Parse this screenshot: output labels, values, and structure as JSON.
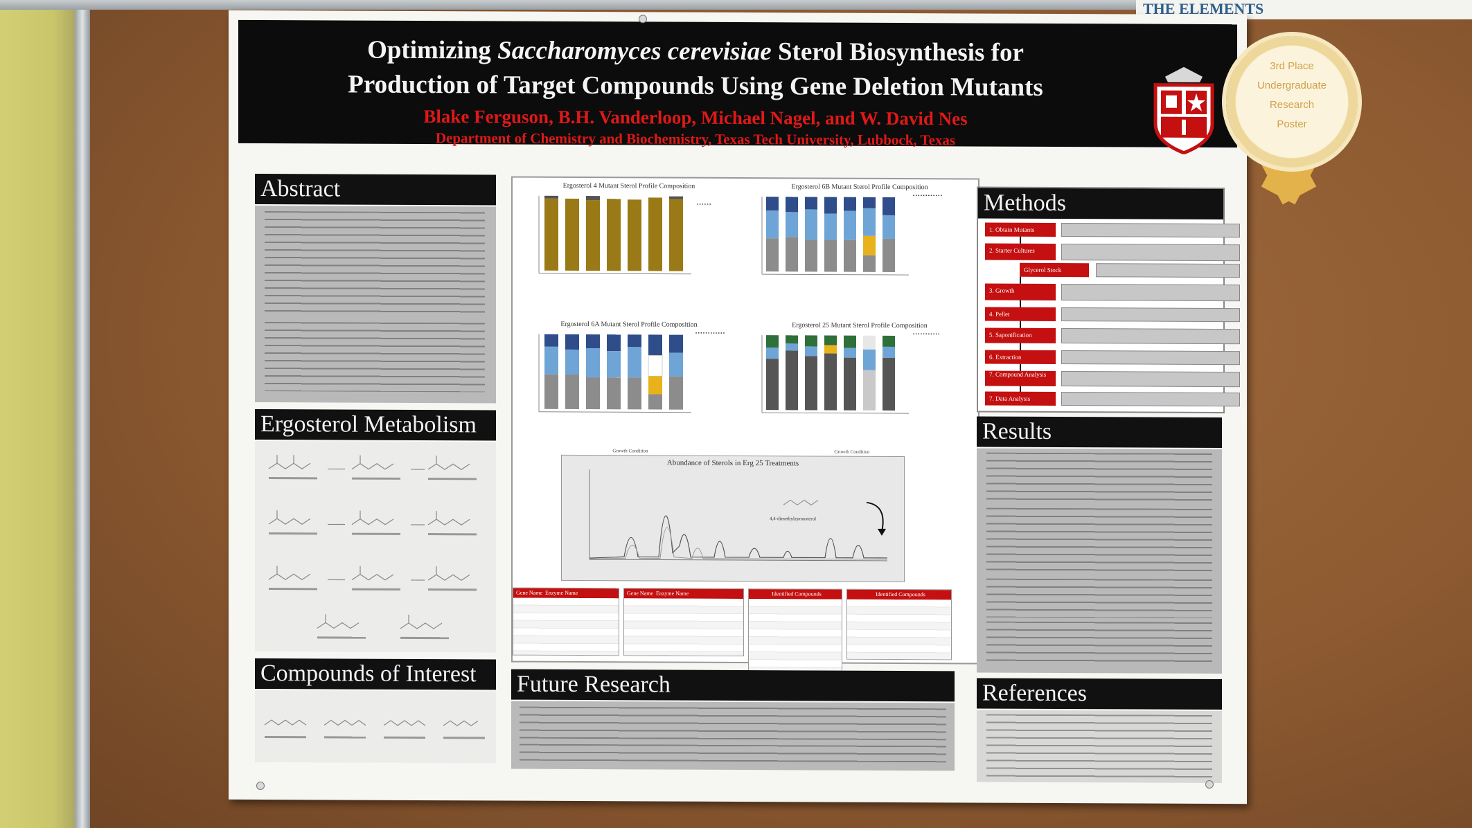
{
  "background_poster": {
    "text": "THE ELEMENTS"
  },
  "header": {
    "title_line1_pre": "Optimizing ",
    "title_line1_italic": "Saccharomyces cerevisiae",
    "title_line1_post": " Sterol Biosynthesis for",
    "title_line2": "Production of Target Compounds Using Gene Deletion Mutants",
    "authors": "Blake Ferguson, B.H. Vanderloop, Michael Nagel, and W. David Nes",
    "department": "Department of Chemistry and Biochemistry, Texas Tech University, Lubbock, Texas"
  },
  "award": {
    "line1": "3rd Place",
    "line2": "Undergraduate",
    "line3": "Research",
    "line4": "Poster"
  },
  "sections": {
    "abstract": "Abstract",
    "metabolism": "Ergosterol Metabolism",
    "compounds": "Compounds of Interest",
    "future": "Future Research",
    "methods": "Methods",
    "results": "Results",
    "references": "References"
  },
  "charts": {
    "erg4_title": "Ergosterol 4 Mutant Sterol Profile Composition",
    "erg6b_title": "Ergosterol 6B Mutant Sterol Profile Composition",
    "erg6a_title": "Ergosterol 6A Mutant Sterol Profile Composition",
    "erg25_title": "Ergosterol 25 Mutant Sterol Profile Composition",
    "x_label": "Growth Condition",
    "gc_title": "Abundance of Sterols in Erg 25 Treatments",
    "gc_annotation": "4,4-dimethylzymosterol"
  },
  "methods": {
    "steps": [
      "1. Obtain Mutants",
      "2. Starter Cultures",
      "Glycerol Stock",
      "3. Growth",
      "4. Pellet",
      "5. Saponification",
      "6. Extraction",
      "7. Compound Analysis",
      "7. Data Analysis"
    ]
  },
  "tables": {
    "gene_name": "Gene Name",
    "enzyme_name": "Enzyme Name",
    "identified": "Identified Compounds"
  },
  "colors": {
    "header_bg": "#0c0c0c",
    "accent_red": "#c41010",
    "poster_bg": "#f6f6f3",
    "cork": "#8d5a31",
    "award_gold": "#e4b24a"
  }
}
